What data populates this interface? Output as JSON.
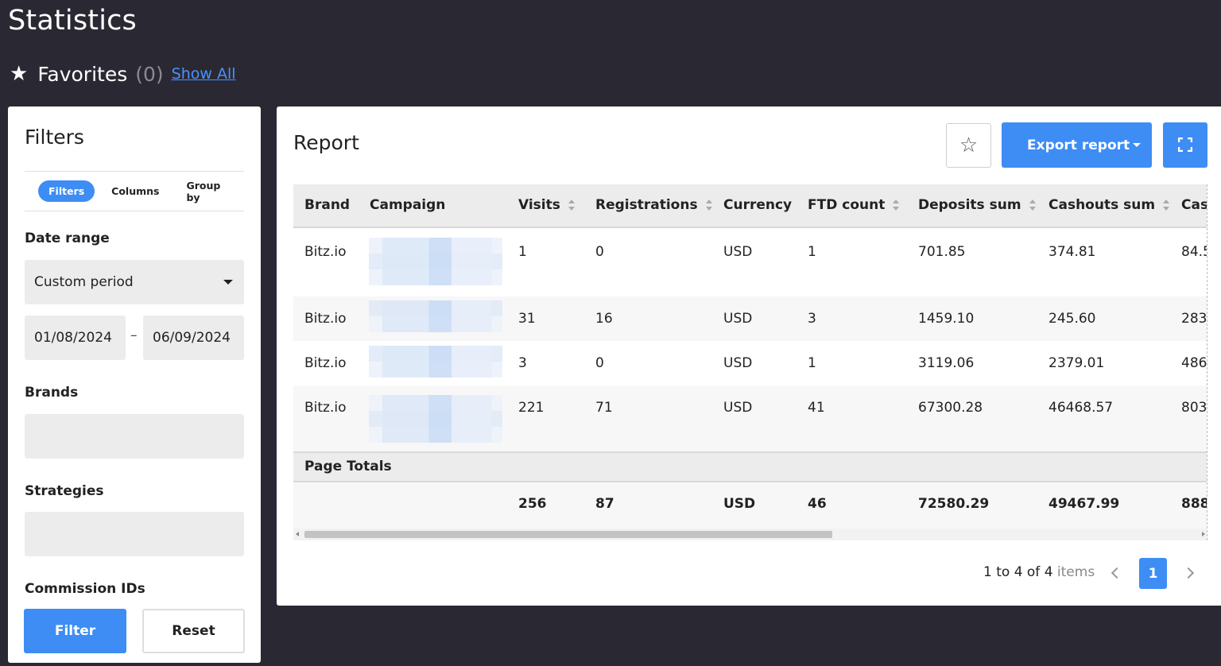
{
  "page": {
    "title": "Statistics"
  },
  "favorites": {
    "label": "Favorites",
    "count": "(0)",
    "show_all": "Show All"
  },
  "filters": {
    "title": "Filters",
    "tabs": [
      "Filters",
      "Columns",
      "Group by"
    ],
    "date_range_label": "Date range",
    "period": "Custom period",
    "date_from": "01/08/2024",
    "date_separator": "–",
    "date_to": "06/09/2024",
    "brands_label": "Brands",
    "strategies_label": "Strategies",
    "commission_label": "Commission IDs",
    "filter_button": "Filter",
    "reset_button": "Reset"
  },
  "report": {
    "title": "Report",
    "export_label": "Export report",
    "columns": [
      "Brand",
      "Campaign",
      "Visits",
      "Registrations",
      "Currency",
      "FTD count",
      "Deposits sum",
      "Cashouts sum",
      "Cas"
    ],
    "rows": [
      {
        "brand": "Bitz.io",
        "visits": "1",
        "registrations": "0",
        "currency": "USD",
        "ftd": "1",
        "deposits": "701.85",
        "cashouts": "374.81",
        "cas": "84.5"
      },
      {
        "brand": "Bitz.io",
        "visits": "31",
        "registrations": "16",
        "currency": "USD",
        "ftd": "3",
        "deposits": "1459.10",
        "cashouts": "245.60",
        "cas": "283"
      },
      {
        "brand": "Bitz.io",
        "visits": "3",
        "registrations": "0",
        "currency": "USD",
        "ftd": "1",
        "deposits": "3119.06",
        "cashouts": "2379.01",
        "cas": "486"
      },
      {
        "brand": "Bitz.io",
        "visits": "221",
        "registrations": "71",
        "currency": "USD",
        "ftd": "41",
        "deposits": "67300.28",
        "cashouts": "46468.57",
        "cas": "803"
      }
    ],
    "totals_label": "Page Totals",
    "totals": {
      "visits": "256",
      "registrations": "87",
      "currency": "USD",
      "ftd": "46",
      "deposits": "72580.29",
      "cashouts": "49467.99",
      "cas": "888"
    },
    "pagination": {
      "range": "1 to 4 of 4",
      "items": "items",
      "current_page": "1"
    }
  },
  "colors": {
    "accent": "#3d8df5",
    "background": "#2a2933"
  }
}
